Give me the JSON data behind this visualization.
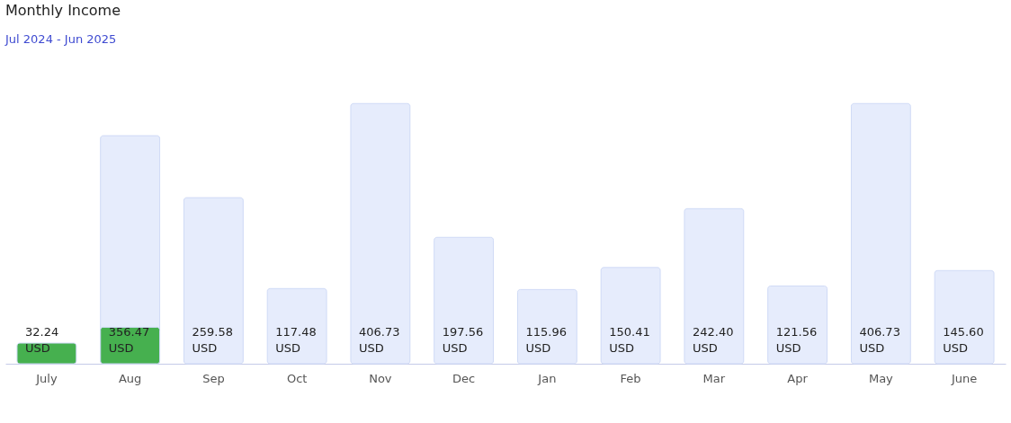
{
  "chart_data": {
    "type": "bar",
    "title": "Monthly Income",
    "subtitle": "Jul 2024 - Jun 2025",
    "categories": [
      "July",
      "Aug",
      "Sep",
      "Oct",
      "Nov",
      "Dec",
      "Jan",
      "Feb",
      "Mar",
      "Apr",
      "May",
      "June"
    ],
    "series": [
      {
        "color": "#e6ecfc",
        "values": [
          null,
          356.47,
          259.58,
          117.48,
          406.73,
          197.56,
          115.96,
          150.41,
          242.4,
          121.56,
          406.73,
          145.6
        ],
        "value_labels": [
          null,
          "356.47 USD",
          "259.58 USD",
          "117.48 USD",
          "406.73 USD",
          "197.56 USD",
          "115.96 USD",
          "150.41 USD",
          "242.40 USD",
          "121.56 USD",
          "406.73 USD",
          "145.60 USD"
        ]
      },
      {
        "color": "#46b04f",
        "values": [
          32.24,
          57,
          null,
          null,
          null,
          null,
          null,
          null,
          null,
          null,
          null,
          null
        ],
        "value_labels": [
          "32.24 USD",
          null,
          null,
          null,
          null,
          null,
          null,
          null,
          null,
          null,
          null,
          null
        ]
      }
    ],
    "legend": false,
    "grid": false
  }
}
